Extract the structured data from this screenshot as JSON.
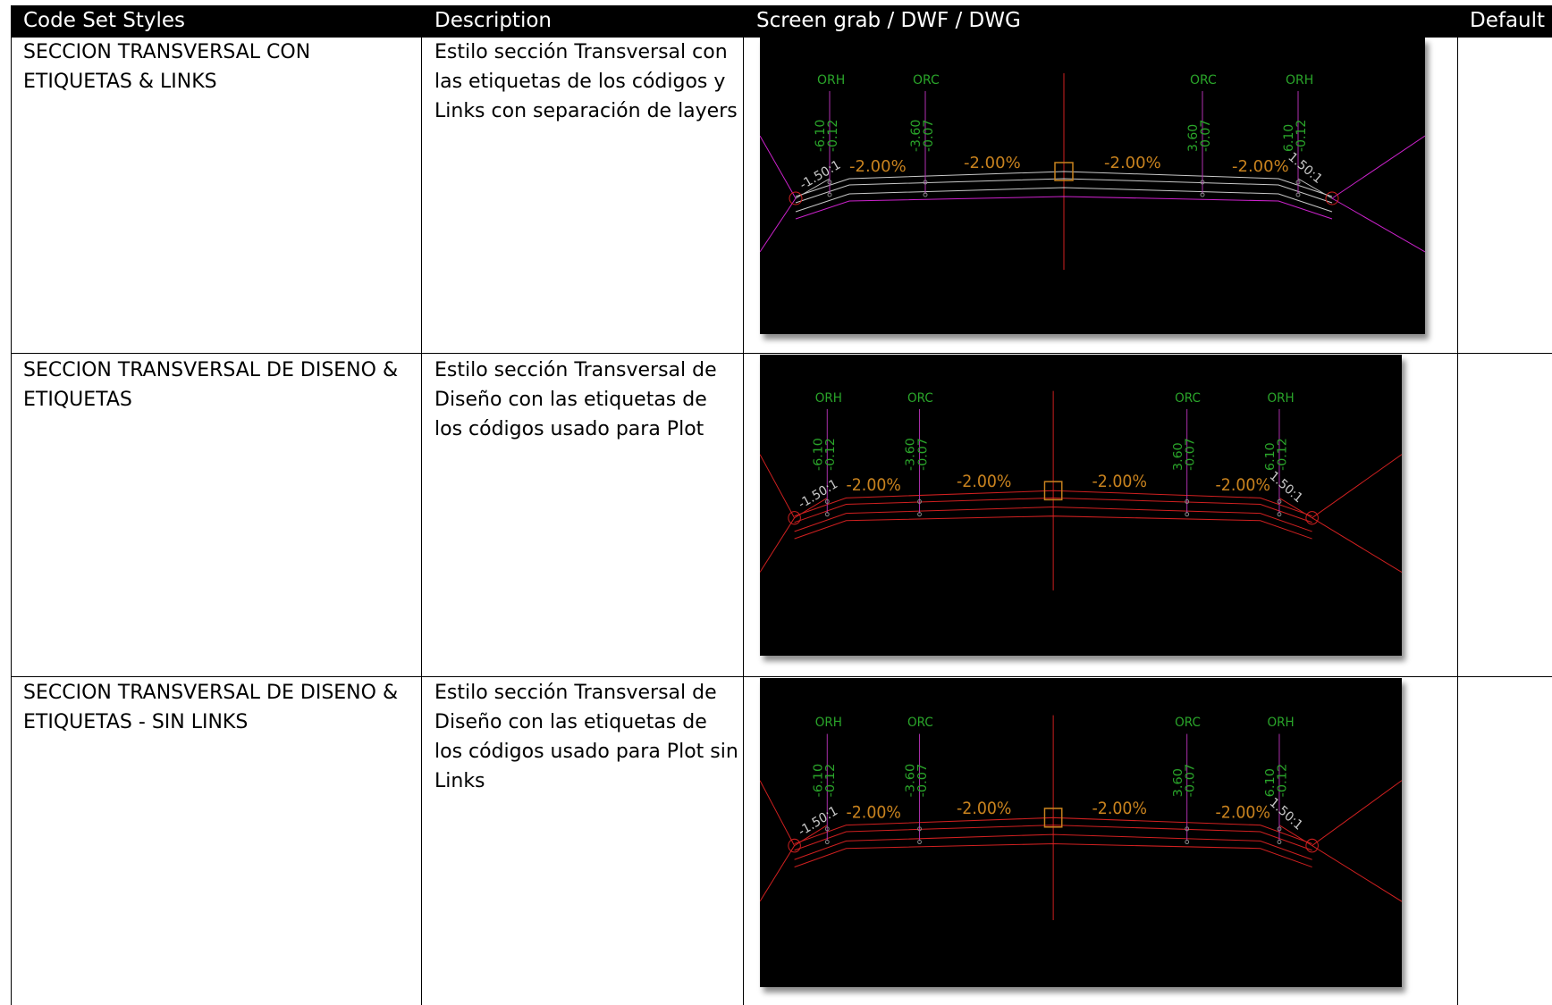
{
  "header": {
    "col1": "Code Set Styles",
    "col2": "Description",
    "col3": "Screen grab / DWF / DWG",
    "col4": "Default"
  },
  "rows": [
    {
      "code": "SECCION TRANSVERSAL CON ETIQUETAS & LINKS",
      "description": "Estilo sección Transversal con las etiquetas de los códigos y Links con separación de layers",
      "labels": {
        "codes": [
          "ORH",
          "ORC",
          "ORC",
          "ORH"
        ],
        "offsets": [
          "-6.10",
          "-3.60",
          "3.60",
          "6.10"
        ],
        "elevations": [
          "-0.12",
          "-0.07",
          "-0.07",
          "-0.12"
        ],
        "slopes": [
          "-1.50:1",
          "-2.00%",
          "-2.00%",
          "-2.00%",
          "-2.00%",
          "1.50:1"
        ]
      },
      "colors": {
        "links": "#c8c8c8",
        "base": "#cc22cc",
        "labels": "#c8821e",
        "codes": "#2aa52a"
      }
    },
    {
      "code": "SECCION TRANSVERSAL DE DISENO & ETIQUETAS",
      "description": "Estilo sección Transversal de Diseño  con las etiquetas de los códigos usado para Plot",
      "labels": {
        "codes": [
          "ORH",
          "ORC",
          "ORC",
          "ORH"
        ],
        "offsets": [
          "-6.10",
          "-3.60",
          "3.60",
          "6.10"
        ],
        "elevations": [
          "-0.12",
          "-0.07",
          "-0.07",
          "-0.12"
        ],
        "slopes": [
          "-1.50:1",
          "-2.00%",
          "-2.00%",
          "-2.00%",
          "-2.00%",
          "1.50:1"
        ]
      },
      "colors": {
        "links": "#d02020",
        "base": "#d02020",
        "labels": "#c8821e",
        "codes": "#2aa52a"
      }
    },
    {
      "code": "SECCION TRANSVERSAL DE DISENO & ETIQUETAS - SIN LINKS",
      "description": "Estilo sección Transversal de Diseño  con las etiquetas de los códigos usado para Plot sin Links",
      "labels": {
        "codes": [
          "ORH",
          "ORC",
          "ORC",
          "ORH"
        ],
        "offsets": [
          "-6.10",
          "-3.60",
          "3.60",
          "6.10"
        ],
        "elevations": [
          "-0.12",
          "-0.07",
          "-0.07",
          "-0.12"
        ],
        "slopes": [
          "-1.50:1",
          "-2.00%",
          "-2.00%",
          "-2.00%",
          "-2.00%",
          "1.50:1"
        ]
      },
      "colors": {
        "links": "#d02020",
        "base": "#d02020",
        "labels": "#c8821e",
        "codes": "#2aa52a"
      }
    }
  ]
}
